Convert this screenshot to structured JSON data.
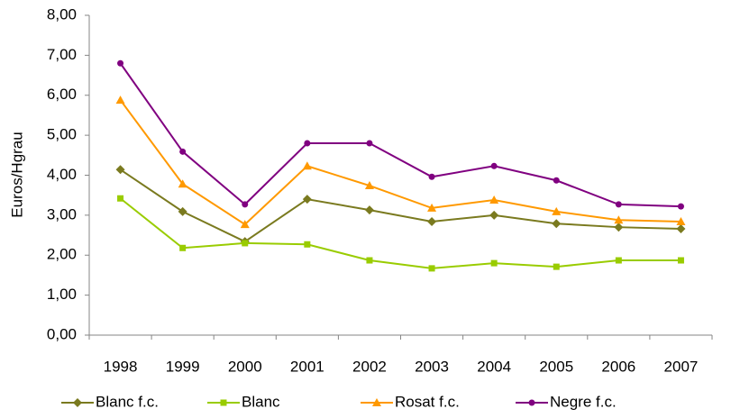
{
  "chart_data": {
    "type": "line",
    "y_label": "Euros/Hgrau",
    "categories": [
      "1998",
      "1999",
      "2000",
      "2001",
      "2002",
      "2003",
      "2004",
      "2005",
      "2006",
      "2007"
    ],
    "series": [
      {
        "name": "Blanc f.c.",
        "color": "#7a7a1f",
        "marker": "diamond",
        "values": [
          4.14,
          3.09,
          2.34,
          3.4,
          3.13,
          2.84,
          3.0,
          2.79,
          2.7,
          2.66
        ]
      },
      {
        "name": "Blanc",
        "color": "#99cc00",
        "marker": "square",
        "values": [
          3.42,
          2.18,
          2.3,
          2.27,
          1.87,
          1.67,
          1.8,
          1.71,
          1.87,
          1.87
        ]
      },
      {
        "name": "Rosat f.c.",
        "color": "#ff9900",
        "marker": "triangle",
        "values": [
          5.88,
          3.78,
          2.77,
          4.23,
          3.74,
          3.18,
          3.38,
          3.09,
          2.88,
          2.84
        ]
      },
      {
        "name": "Negre f.c.",
        "color": "#800080",
        "marker": "circle",
        "values": [
          6.8,
          4.59,
          3.27,
          4.8,
          4.8,
          3.96,
          4.23,
          3.87,
          3.27,
          3.22
        ]
      }
    ],
    "ylim": [
      0,
      8
    ],
    "yticks": [
      {
        "value": 0,
        "label": "0,00"
      },
      {
        "value": 1,
        "label": "1,00"
      },
      {
        "value": 2,
        "label": "2,00"
      },
      {
        "value": 3,
        "label": "3,00"
      },
      {
        "value": 4,
        "label": "4,00"
      },
      {
        "value": 5,
        "label": "5,00"
      },
      {
        "value": 6,
        "label": "6,00"
      },
      {
        "value": 7,
        "label": "7,00"
      },
      {
        "value": 8,
        "label": "8,00"
      }
    ],
    "grid": false,
    "legend": "bottom"
  }
}
